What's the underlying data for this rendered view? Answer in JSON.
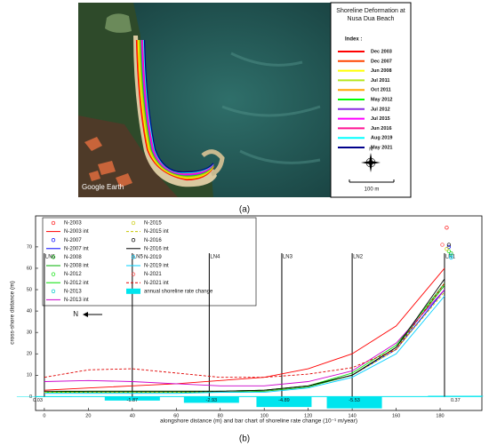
{
  "panel_a": {
    "title": "Shoreline Deformation at Nusa Dua Beach",
    "index_label": "Index :",
    "legend": [
      {
        "name": "Dec 2003",
        "color": "#ff0000"
      },
      {
        "name": "Dec 2007",
        "color": "#ff4500"
      },
      {
        "name": "Jun 2008",
        "color": "#ffff00"
      },
      {
        "name": "Jul 2011",
        "color": "#b5e61d"
      },
      {
        "name": "Oct 2011",
        "color": "#ffa500"
      },
      {
        "name": "May 2012",
        "color": "#00ff00"
      },
      {
        "name": "Jul 2012",
        "color": "#8a2be2"
      },
      {
        "name": "Jul 2015",
        "color": "#ff00ff"
      },
      {
        "name": "Jun 2016",
        "color": "#ff1493"
      },
      {
        "name": "Aug 2019",
        "color": "#00ffff"
      },
      {
        "name": "May 2021",
        "color": "#00008b"
      }
    ],
    "compass_label": "N",
    "scale_label": "100 m",
    "watermark": "Google Earth",
    "caption": "(a)"
  },
  "chart_data": {
    "type": "line",
    "xlabel": "alongshore distance (m) and bar chart of shoreline rate change (10⁻¹ m/year)",
    "ylabel": "cross-shore distance (m)",
    "xlim": [
      -4,
      199
    ],
    "ylim": [
      -6.5,
      84.5
    ],
    "xticks": [
      0,
      20,
      40,
      60,
      80,
      100,
      120,
      140,
      160,
      180
    ],
    "yticks": [
      0,
      10,
      20,
      30,
      40,
      50,
      60,
      70
    ],
    "series": [
      {
        "name": "N-2003",
        "color": "#ff0000",
        "style": "marker",
        "x": [
          183
        ],
        "values": [
          79
        ]
      },
      {
        "name": "N-2003 int",
        "color": "#ff0000",
        "style": "solid",
        "x": [
          0,
          20,
          40,
          60,
          80,
          100,
          120,
          140,
          160,
          182
        ],
        "values": [
          3,
          4,
          5,
          6,
          7.5,
          9,
          13,
          20,
          33,
          60
        ]
      },
      {
        "name": "N-2007",
        "color": "#0000ff",
        "style": "marker",
        "x": [
          184
        ],
        "values": [
          70
        ]
      },
      {
        "name": "N-2007 int",
        "color": "#0000ff",
        "style": "solid",
        "x": [
          0,
          20,
          40,
          60,
          80,
          100,
          120,
          140,
          160,
          182
        ],
        "values": [
          2,
          2,
          2,
          2,
          2.5,
          3,
          5,
          10,
          22,
          50
        ]
      },
      {
        "name": "N-2008",
        "color": "#00b000",
        "style": "marker",
        "x": [
          185
        ],
        "values": [
          67
        ]
      },
      {
        "name": "N-2008 int",
        "color": "#00b000",
        "style": "solid",
        "x": [
          0,
          20,
          40,
          60,
          80,
          100,
          120,
          140,
          160,
          182
        ],
        "values": [
          2,
          2,
          2,
          2,
          2,
          2.5,
          4.5,
          10,
          23,
          52
        ]
      },
      {
        "name": "N-2012",
        "color": "#00e000",
        "style": "marker",
        "x": [
          184
        ],
        "values": [
          68
        ]
      },
      {
        "name": "N-2012 int",
        "color": "#00e000",
        "style": "solid",
        "x": [
          0,
          20,
          40,
          60,
          80,
          100,
          120,
          140,
          160,
          182
        ],
        "values": [
          2,
          2.5,
          2.5,
          2.5,
          2.5,
          3,
          5,
          11,
          24,
          53
        ]
      },
      {
        "name": "N-2013",
        "color": "#00c8c8",
        "style": "marker",
        "x": [
          185
        ],
        "values": [
          66
        ]
      },
      {
        "name": "N-2013 int",
        "color": "#cc00cc",
        "style": "solid",
        "x": [
          0,
          20,
          40,
          60,
          80,
          100,
          120,
          140,
          160,
          182
        ],
        "values": [
          7,
          7.5,
          7,
          6,
          5,
          5,
          7,
          12,
          25,
          50
        ]
      },
      {
        "name": "N-2015",
        "color": "#c8c800",
        "style": "marker",
        "x": [
          183
        ],
        "values": [
          69
        ]
      },
      {
        "name": "N-2015 int",
        "color": "#c8c800",
        "style": "dashed",
        "x": [
          0,
          20,
          40,
          60,
          80,
          100,
          120,
          140,
          160,
          182
        ],
        "values": [
          2,
          2,
          2,
          2,
          2.5,
          3,
          5,
          10,
          22,
          49
        ]
      },
      {
        "name": "N-2016",
        "color": "#000000",
        "style": "marker",
        "x": [
          184
        ],
        "values": [
          71
        ]
      },
      {
        "name": "N-2016 int",
        "color": "#000000",
        "style": "solid",
        "x": [
          0,
          20,
          40,
          60,
          80,
          100,
          120,
          140,
          160,
          182
        ],
        "values": [
          2.5,
          2.5,
          2.5,
          2.5,
          2.5,
          3,
          5,
          10,
          23,
          55
        ]
      },
      {
        "name": "N-2019",
        "color": "#00d0ff",
        "style": "marker",
        "x": [
          185
        ],
        "values": [
          65
        ]
      },
      {
        "name": "N-2019 int",
        "color": "#00d0ff",
        "style": "solid",
        "x": [
          0,
          20,
          40,
          60,
          80,
          100,
          120,
          140,
          160,
          182
        ],
        "values": [
          1.5,
          1.5,
          1.5,
          1.5,
          2,
          2,
          4,
          9,
          20,
          47
        ]
      },
      {
        "name": "N-2021",
        "color": "#ff4040",
        "style": "marker",
        "x": [
          181
        ],
        "values": [
          71
        ]
      },
      {
        "name": "N-2021 int",
        "color": "#e00000",
        "style": "dashed",
        "x": [
          0,
          20,
          40,
          60,
          80,
          100,
          120,
          140,
          160,
          182
        ],
        "values": [
          9,
          12.5,
          13,
          11,
          9,
          9,
          10.5,
          13.5,
          22,
          53
        ]
      }
    ],
    "bars": {
      "name": "annual shoreline rate change",
      "color": "#00e5ee",
      "x": [
        0,
        40,
        76,
        109,
        141,
        187
      ],
      "values": [
        0.03,
        -1.87,
        -2.93,
        -4.89,
        -5.53,
        0.37
      ]
    },
    "transects": {
      "labels": [
        "LN6",
        "LN5",
        "LN4",
        "LN3",
        "LN2",
        "LN1"
      ],
      "x": [
        0,
        40,
        75,
        108,
        140,
        182
      ]
    },
    "direction_label": "N",
    "caption": "(b)"
  }
}
